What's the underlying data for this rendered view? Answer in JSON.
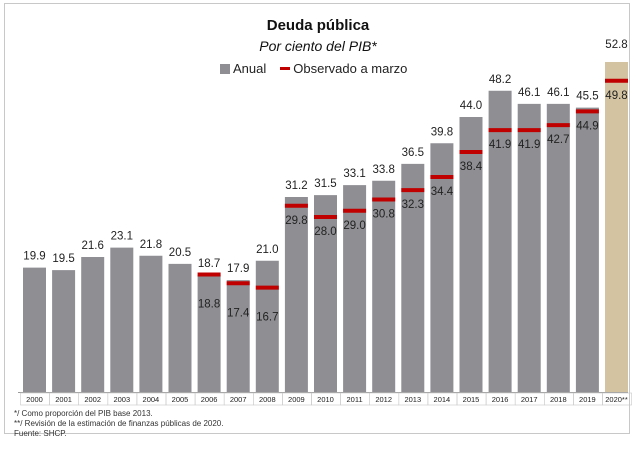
{
  "chart_data": {
    "type": "bar",
    "title": "Deuda pública",
    "subtitle": "Por ciento del PIB*",
    "legend": [
      "Anual",
      "Observado a marzo"
    ],
    "categories": [
      "2000",
      "2001",
      "2002",
      "2003",
      "2004",
      "2005",
      "2006",
      "2007",
      "2008",
      "2009",
      "2010",
      "2011",
      "2012",
      "2013",
      "2014",
      "2015",
      "2016",
      "2017",
      "2018",
      "2019",
      "2020**"
    ],
    "series": [
      {
        "name": "Anual",
        "values": [
          19.9,
          19.5,
          21.6,
          23.1,
          21.8,
          20.5,
          18.7,
          17.9,
          21.0,
          31.2,
          31.5,
          33.1,
          33.8,
          36.5,
          39.8,
          44.0,
          48.2,
          46.1,
          46.1,
          45.5,
          52.8
        ]
      },
      {
        "name": "Observado a marzo",
        "values": [
          null,
          null,
          null,
          null,
          null,
          null,
          18.8,
          17.4,
          16.7,
          29.8,
          28.0,
          29.0,
          30.8,
          32.3,
          34.4,
          38.4,
          41.9,
          41.9,
          42.7,
          44.9,
          49.8
        ]
      }
    ],
    "bar_labels": [
      "19.9",
      "19.5",
      "21.6",
      "23.1",
      "21.8",
      "20.5",
      "18.7",
      "17.9",
      "21.0",
      "31.2",
      "31.5",
      "33.1",
      "33.8",
      "36.5",
      "39.8",
      "44.0",
      "48.2",
      "46.1",
      "46.1",
      "45.5",
      "52.8"
    ],
    "marker_labels": [
      null,
      null,
      null,
      null,
      null,
      null,
      "18.8",
      "17.4",
      "16.7",
      "29.8",
      "28.0",
      "29.0",
      "30.8",
      "32.3",
      "34.4",
      "38.4",
      "41.9",
      "41.9",
      "42.7",
      "44.9",
      "49.8"
    ],
    "ylim": [
      0,
      55
    ],
    "grid": false,
    "legend_placement": "top-center",
    "colors": {
      "bar": "#8f8e93",
      "highlight_bar": "#d3c3a0",
      "marker": "#c00000",
      "text": "#222222"
    }
  },
  "notes": [
    "*/ Como proporción del PIB base 2013.",
    "**/ Revisión de la estimación de finanzas públicas de 2020.",
    "Fuente: SHCP."
  ]
}
